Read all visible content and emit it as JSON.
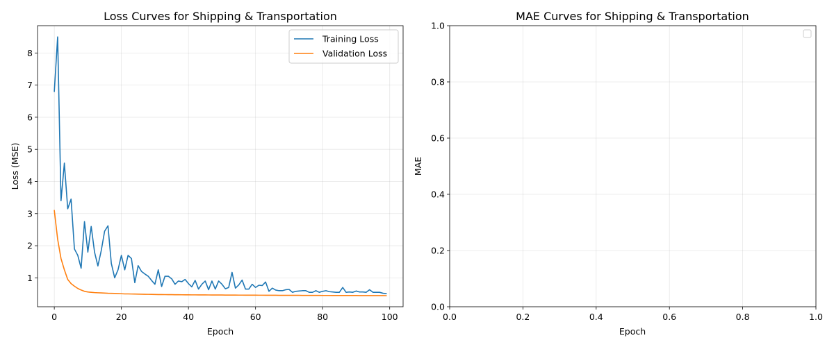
{
  "chart_data": [
    {
      "type": "line",
      "title": "Loss Curves for Shipping & Transportation",
      "xlabel": "Epoch",
      "ylabel": "Loss (MSE)",
      "xlim": [
        -5,
        104
      ],
      "ylim": [
        0.1,
        8.85
      ],
      "xticks": [
        0,
        20,
        40,
        60,
        80,
        100
      ],
      "yticks": [
        1,
        2,
        3,
        4,
        5,
        6,
        7,
        8
      ],
      "grid": true,
      "legend": "top-right",
      "series": [
        {
          "name": "Training Loss",
          "color": "#1f77b4",
          "x": [
            0,
            1,
            2,
            3,
            4,
            5,
            6,
            7,
            8,
            9,
            10,
            11,
            12,
            13,
            14,
            15,
            16,
            17,
            18,
            19,
            20,
            21,
            22,
            23,
            24,
            25,
            26,
            27,
            28,
            29,
            30,
            31,
            32,
            33,
            34,
            35,
            36,
            37,
            38,
            39,
            40,
            41,
            42,
            43,
            44,
            45,
            46,
            47,
            48,
            49,
            50,
            51,
            52,
            53,
            54,
            55,
            56,
            57,
            58,
            59,
            60,
            61,
            62,
            63,
            64,
            65,
            66,
            67,
            68,
            69,
            70,
            71,
            72,
            73,
            74,
            75,
            76,
            77,
            78,
            79,
            80,
            81,
            82,
            83,
            84,
            85,
            86,
            87,
            88,
            89,
            90,
            91,
            92,
            93,
            94,
            95,
            96,
            97,
            98,
            99
          ],
          "values": [
            6.8,
            8.5,
            3.4,
            4.57,
            3.15,
            3.45,
            1.9,
            1.7,
            1.3,
            2.75,
            1.8,
            2.6,
            1.8,
            1.37,
            1.85,
            2.45,
            2.62,
            1.45,
            1.0,
            1.25,
            1.7,
            1.25,
            1.7,
            1.6,
            0.85,
            1.38,
            1.2,
            1.12,
            1.05,
            0.92,
            0.8,
            1.25,
            0.73,
            1.05,
            1.05,
            0.97,
            0.8,
            0.9,
            0.88,
            0.95,
            0.82,
            0.72,
            0.92,
            0.65,
            0.8,
            0.9,
            0.63,
            0.9,
            0.65,
            0.9,
            0.8,
            0.66,
            0.7,
            1.17,
            0.68,
            0.78,
            0.93,
            0.65,
            0.65,
            0.8,
            0.7,
            0.77,
            0.76,
            0.87,
            0.58,
            0.68,
            0.62,
            0.6,
            0.6,
            0.63,
            0.64,
            0.55,
            0.58,
            0.59,
            0.6,
            0.6,
            0.55,
            0.55,
            0.6,
            0.55,
            0.58,
            0.6,
            0.57,
            0.56,
            0.55,
            0.55,
            0.7,
            0.55,
            0.56,
            0.55,
            0.59,
            0.56,
            0.56,
            0.55,
            0.63,
            0.55,
            0.55,
            0.55,
            0.52,
            0.51
          ]
        },
        {
          "name": "Validation Loss",
          "color": "#ff7f0e",
          "x": [
            0,
            1,
            2,
            3,
            4,
            5,
            6,
            7,
            8,
            9,
            10,
            11,
            12,
            13,
            14,
            15,
            16,
            17,
            18,
            19,
            20,
            21,
            22,
            23,
            24,
            25,
            26,
            27,
            28,
            29,
            30,
            31,
            32,
            33,
            34,
            35,
            36,
            37,
            38,
            39,
            40,
            41,
            42,
            43,
            44,
            45,
            46,
            47,
            48,
            49,
            50,
            51,
            52,
            53,
            54,
            55,
            56,
            57,
            58,
            59,
            60,
            61,
            62,
            63,
            64,
            65,
            66,
            67,
            68,
            69,
            70,
            71,
            72,
            73,
            74,
            75,
            76,
            77,
            78,
            79,
            80,
            81,
            82,
            83,
            84,
            85,
            86,
            87,
            88,
            89,
            90,
            91,
            92,
            93,
            94,
            95,
            96,
            97,
            98,
            99
          ],
          "values": [
            3.1,
            2.2,
            1.6,
            1.25,
            0.95,
            0.82,
            0.74,
            0.67,
            0.62,
            0.58,
            0.56,
            0.55,
            0.54,
            0.535,
            0.53,
            0.525,
            0.52,
            0.518,
            0.515,
            0.51,
            0.505,
            0.5,
            0.5,
            0.497,
            0.495,
            0.492,
            0.49,
            0.488,
            0.486,
            0.484,
            0.482,
            0.48,
            0.479,
            0.478,
            0.477,
            0.476,
            0.475,
            0.474,
            0.473,
            0.472,
            0.471,
            0.47,
            0.47,
            0.469,
            0.468,
            0.468,
            0.467,
            0.466,
            0.466,
            0.465,
            0.465,
            0.464,
            0.464,
            0.463,
            0.463,
            0.462,
            0.462,
            0.461,
            0.461,
            0.46,
            0.46,
            0.459,
            0.459,
            0.458,
            0.458,
            0.457,
            0.457,
            0.456,
            0.456,
            0.455,
            0.455,
            0.455,
            0.454,
            0.454,
            0.453,
            0.453,
            0.453,
            0.452,
            0.452,
            0.452,
            0.451,
            0.451,
            0.451,
            0.45,
            0.45,
            0.45,
            0.45,
            0.449,
            0.449,
            0.449,
            0.449,
            0.448,
            0.448,
            0.448,
            0.448,
            0.447,
            0.447,
            0.447,
            0.447,
            0.446
          ]
        }
      ]
    },
    {
      "type": "line",
      "title": "MAE Curves for Shipping & Transportation",
      "xlabel": "Epoch",
      "ylabel": "MAE",
      "xlim": [
        0,
        1
      ],
      "ylim": [
        0,
        1
      ],
      "xticks": [
        0.0,
        0.2,
        0.4,
        0.6,
        0.8,
        1.0
      ],
      "yticks": [
        0.0,
        0.2,
        0.4,
        0.6,
        0.8,
        1.0
      ],
      "grid": true,
      "legend": "top-right",
      "series": []
    }
  ]
}
